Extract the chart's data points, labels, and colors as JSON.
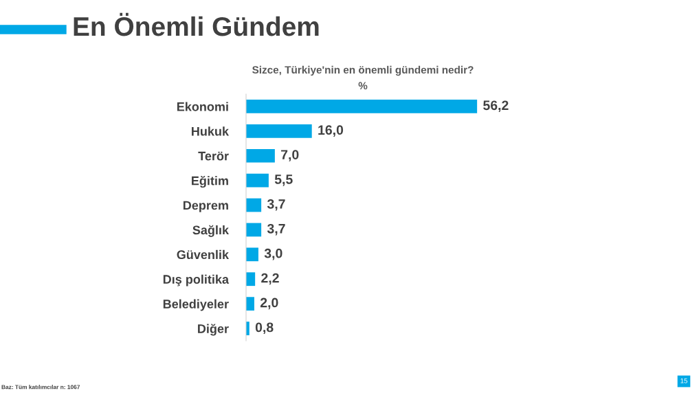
{
  "chart_data": {
    "type": "bar",
    "orientation": "horizontal",
    "title": "En Önemli Gündem",
    "subtitle": "Sizce, Türkiye'nin en önemli gündemi nedir?",
    "categories": [
      "Ekonomi",
      "Hukuk",
      "Terör",
      "Eğitim",
      "Deprem",
      "Sağlık",
      "Güvenlik",
      "Dış politika",
      "Belediyeler",
      "Diğer"
    ],
    "values": [
      56.2,
      16.0,
      7.0,
      5.5,
      3.7,
      3.7,
      3.0,
      2.2,
      2.0,
      0.8
    ],
    "value_labels": [
      "56,2",
      "16,0",
      "7,0",
      "5,5",
      "3,7",
      "3,7",
      "3,0",
      "2,2",
      "2,0",
      "0,8"
    ],
    "color": "#00a8e6",
    "grid": false,
    "legend": false,
    "annotations": [
      "%",
      "Baz: Tüm katılımcılar n: 1067",
      "15"
    ]
  }
}
